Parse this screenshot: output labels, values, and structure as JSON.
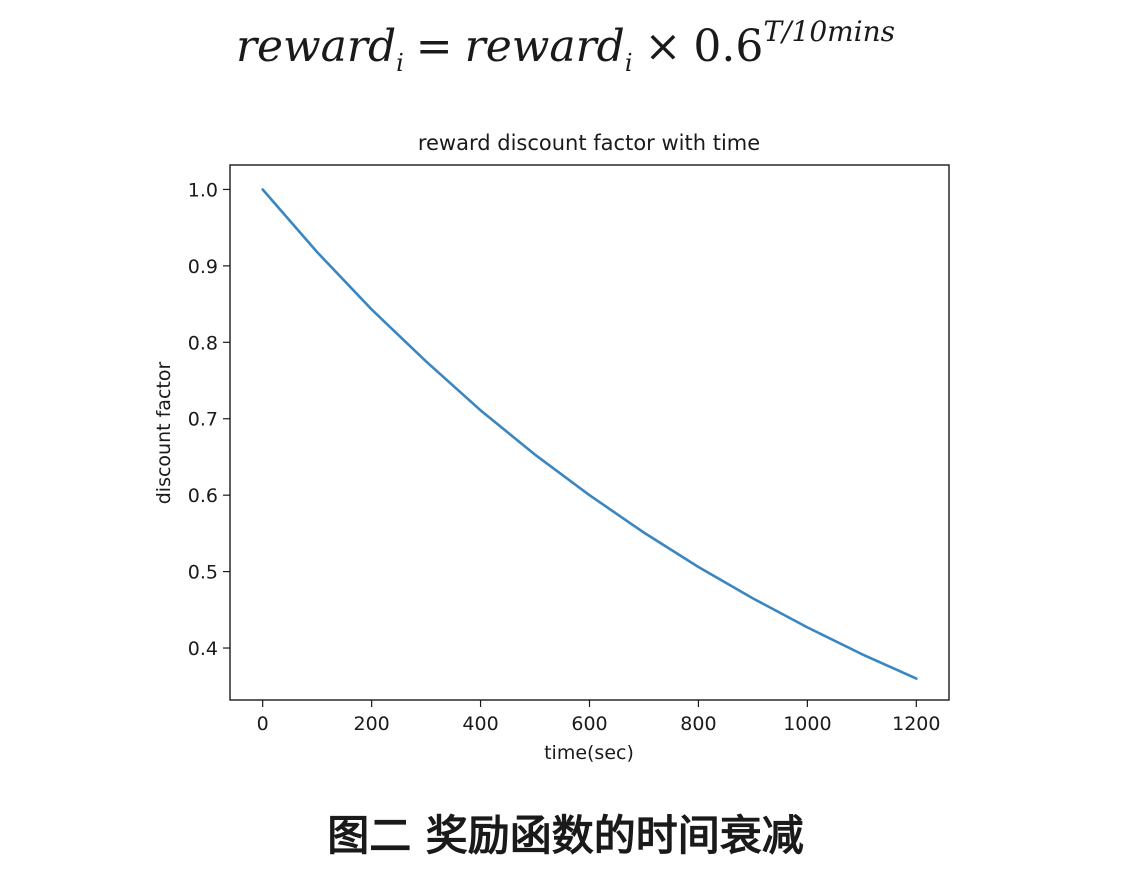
{
  "formula": {
    "lhs_base": "reward",
    "lhs_sub": "i",
    "equals": "=",
    "rhs_base": "reward",
    "rhs_sub": "i",
    "times": "×",
    "coef": "0.6",
    "exponent": "T/10mins"
  },
  "caption": "图二 奖励函数的时间衰减",
  "chart_data": {
    "type": "line",
    "title": "reward discount factor with time",
    "xlabel": "time(sec)",
    "ylabel": "discount factor",
    "x_ticks": [
      0,
      200,
      400,
      600,
      800,
      1000,
      1200
    ],
    "x_tick_labels": [
      "0",
      "200",
      "400",
      "600",
      "800",
      "1000",
      "1200"
    ],
    "y_ticks": [
      0.4,
      0.5,
      0.6,
      0.7,
      0.8,
      0.9,
      1.0
    ],
    "y_tick_labels": [
      "0.4",
      "0.5",
      "0.6",
      "0.7",
      "0.8",
      "0.9",
      "1.0"
    ],
    "xlim": [
      -60,
      1260
    ],
    "ylim": [
      0.332,
      1.032
    ],
    "grid": false,
    "series": [
      {
        "color": "#3a86c2",
        "x": [
          0,
          100,
          200,
          300,
          400,
          500,
          600,
          700,
          800,
          900,
          1000,
          1100,
          1200
        ],
        "y": [
          1.0,
          0.918,
          0.843,
          0.775,
          0.711,
          0.653,
          0.6,
          0.551,
          0.506,
          0.465,
          0.427,
          0.392,
          0.36
        ]
      }
    ]
  }
}
